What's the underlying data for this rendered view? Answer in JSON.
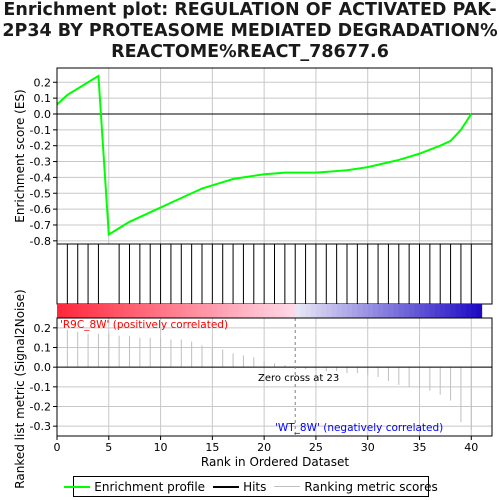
{
  "title": {
    "line1": "Enrichment plot: REGULATION OF ACTIVATED PAK-",
    "line2": "2P34 BY PROTEASOME MEDIATED DEGRADATION%",
    "line3": "REACTOME%REACT_78677.6"
  },
  "colors": {
    "es_line": "#00ff00",
    "hits": "#000000",
    "metric": "#bfbfbf",
    "positive_label": "#ff0000",
    "negative_label": "#0000ff",
    "zero_line": "#808080",
    "grid": "#c8c8c8"
  },
  "chart_data": [
    {
      "type": "line",
      "name": "enrichment-profile",
      "ylabel": "Enrichment score (ES)",
      "ylim": [
        -0.82,
        0.29
      ],
      "yticks": [
        0.2,
        0.1,
        0.0,
        -0.1,
        -0.2,
        -0.3,
        -0.4,
        -0.5,
        -0.6,
        -0.7,
        -0.8
      ],
      "ytick_labels": [
        "0.2",
        "0.1",
        "0.0",
        "-0.1",
        "-0.2",
        "-0.3",
        "-0.4",
        "-0.5",
        "-0.6",
        "-0.7",
        "-0.8"
      ],
      "x": [
        0,
        1,
        2,
        3,
        4,
        5,
        6,
        7,
        8,
        9,
        10,
        11,
        12,
        13,
        14,
        15,
        16,
        17,
        18,
        19,
        20,
        21,
        22,
        23,
        24,
        25,
        26,
        27,
        28,
        29,
        30,
        31,
        32,
        33,
        34,
        35,
        36,
        37,
        38,
        39,
        40
      ],
      "values": [
        0.06,
        0.12,
        0.16,
        0.2,
        0.24,
        -0.76,
        -0.72,
        -0.68,
        -0.65,
        -0.62,
        -0.59,
        -0.56,
        -0.53,
        -0.5,
        -0.47,
        -0.45,
        -0.43,
        -0.41,
        -0.4,
        -0.39,
        -0.38,
        -0.375,
        -0.37,
        -0.37,
        -0.37,
        -0.37,
        -0.365,
        -0.36,
        -0.355,
        -0.345,
        -0.335,
        -0.32,
        -0.305,
        -0.29,
        -0.27,
        -0.25,
        -0.225,
        -0.2,
        -0.17,
        -0.1,
        0.0
      ],
      "grid": true
    },
    {
      "type": "hits",
      "name": "hits",
      "positions": [
        0,
        1,
        2,
        3,
        4,
        6,
        7,
        8,
        9,
        10,
        11,
        12,
        13,
        14,
        15,
        16,
        17,
        18,
        19,
        20,
        21,
        22,
        23,
        24,
        25,
        26,
        27,
        28,
        29,
        30,
        31,
        32,
        33,
        34,
        35,
        36,
        37,
        38,
        39,
        40
      ]
    },
    {
      "type": "bar",
      "name": "ranked-list-metric",
      "ylabel": "Ranked list metric (Signal2Noise)",
      "xlabel": "Rank in Ordered Dataset",
      "ylim": [
        -0.35,
        0.25
      ],
      "yticks": [
        0.2,
        0.1,
        0.0,
        -0.1,
        -0.2,
        -0.3
      ],
      "ytick_labels": [
        "0.2",
        "0.1",
        "0.0",
        "-0.1",
        "-0.2",
        "-0.3"
      ],
      "xticks": [
        0,
        5,
        10,
        15,
        20,
        25,
        30,
        35,
        40
      ],
      "xtick_labels": [
        "0",
        "5",
        "10",
        "15",
        "20",
        "25",
        "30",
        "35",
        "40"
      ],
      "x": [
        0,
        1,
        2,
        3,
        4,
        5,
        6,
        7,
        8,
        9,
        10,
        11,
        12,
        13,
        14,
        15,
        16,
        17,
        18,
        19,
        20,
        21,
        22,
        23,
        24,
        25,
        26,
        27,
        28,
        29,
        30,
        31,
        32,
        33,
        34,
        35,
        36,
        37,
        38,
        39,
        40
      ],
      "values": [
        0.22,
        0.19,
        0.18,
        0.17,
        0.17,
        0.17,
        0.16,
        0.16,
        0.15,
        0.15,
        0.15,
        0.14,
        0.14,
        0.13,
        0.11,
        0.1,
        0.09,
        0.07,
        0.06,
        0.05,
        0.03,
        0.02,
        0.01,
        0.0,
        -0.01,
        -0.01,
        -0.02,
        -0.02,
        -0.03,
        -0.03,
        -0.04,
        -0.05,
        -0.07,
        -0.09,
        -0.1,
        -0.11,
        -0.12,
        -0.14,
        -0.17,
        -0.28,
        -0.32
      ]
    }
  ],
  "annotations": {
    "positive_label": "'R9C_8W' (positively correlated)",
    "negative_label": "'WT_8W' (negatively correlated)",
    "zero_cross": "Zero cross at 23"
  },
  "legend": {
    "items": [
      {
        "label": "Enrichment profile",
        "color": "#00ff00"
      },
      {
        "label": "Hits",
        "color": "#000000"
      },
      {
        "label": "Ranking metric scores",
        "color": "#bfbfbf"
      }
    ]
  }
}
